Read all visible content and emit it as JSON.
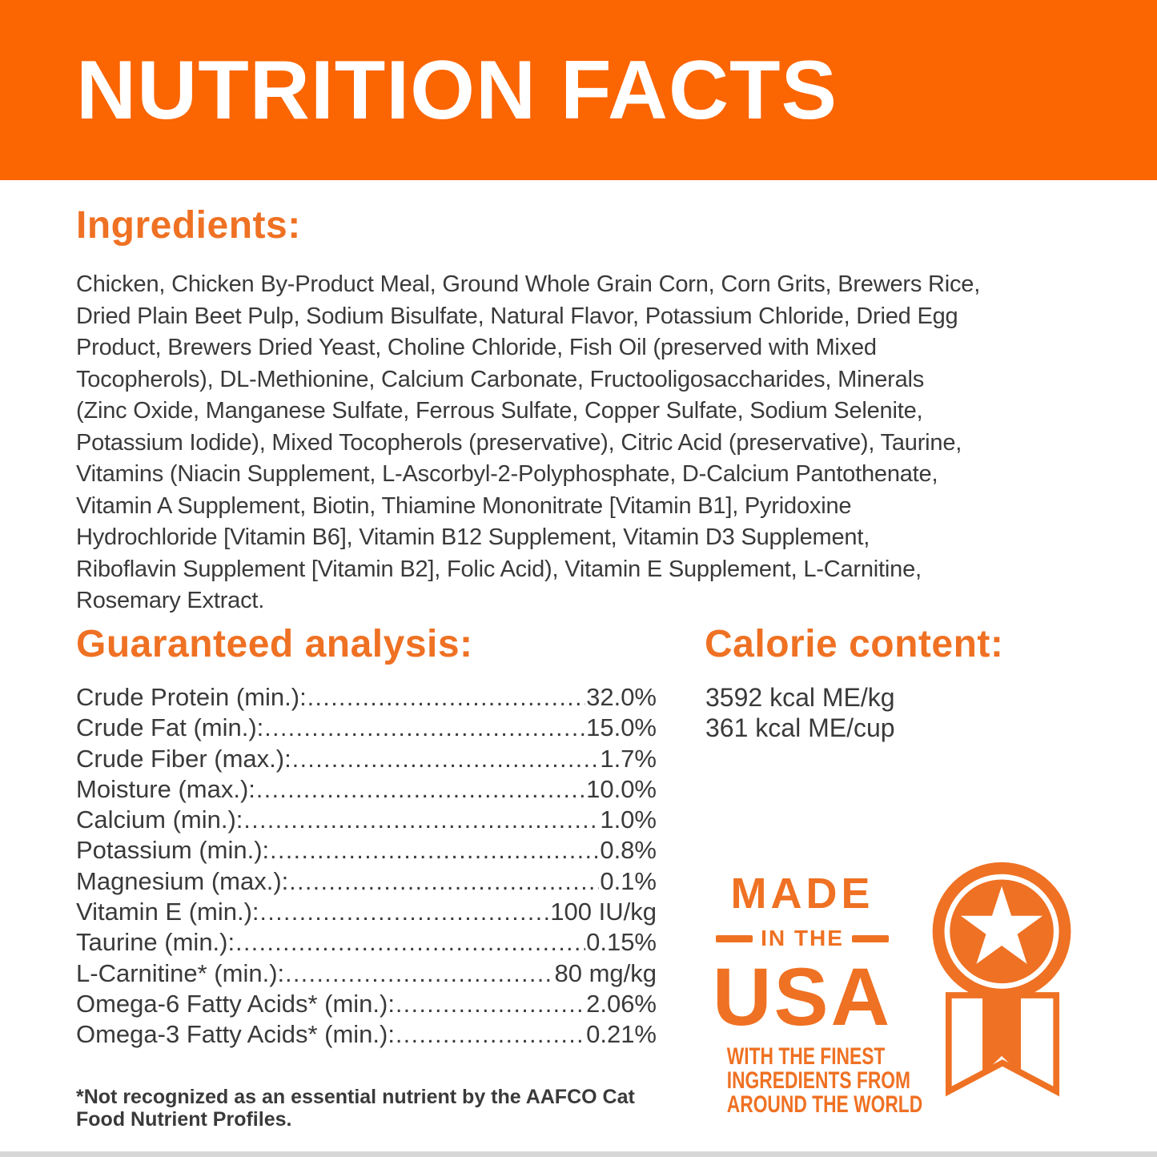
{
  "colors": {
    "banner_orange": "#FB6502",
    "accent_orange": "#EF7123",
    "body_text": "#3A3A3A",
    "bottom_strip": "#D8D8D8",
    "banner_text": "#FFFFFF"
  },
  "header": {
    "title": "NUTRITION FACTS"
  },
  "ingredients": {
    "heading": "Ingredients:",
    "lines": [
      "Chicken, Chicken By-Product Meal, Ground Whole Grain Corn, Corn Grits, Brewers Rice,",
      "Dried Plain Beet Pulp, Sodium Bisulfate, Natural Flavor, Potassium Chloride, Dried Egg",
      "Product, Brewers Dried Yeast, Choline Chloride, Fish Oil (preserved with Mixed",
      "Tocopherols), DL-Methionine, Calcium Carbonate, Fructooligosaccharides, Minerals",
      "(Zinc Oxide, Manganese Sulfate, Ferrous Sulfate, Copper Sulfate, Sodium Selenite,",
      "Potassium Iodide), Mixed Tocopherols (preservative), Citric Acid (preservative), Taurine,",
      "Vitamins (Niacin Supplement, L-Ascorbyl-2-Polyphosphate, D-Calcium Pantothenate,",
      "Vitamin A Supplement, Biotin, Thiamine Mononitrate [Vitamin B1], Pyridoxine",
      "Hydrochloride [Vitamin B6], Vitamin B12 Supplement, Vitamin D3 Supplement,",
      "Riboflavin Supplement [Vitamin B2], Folic Acid), Vitamin E Supplement, L-Carnitine,",
      "Rosemary Extract."
    ]
  },
  "guaranteed_analysis": {
    "heading": "Guaranteed analysis:",
    "rows": [
      {
        "label": "Crude Protein (min.):",
        "value": "32.0%"
      },
      {
        "label": "Crude Fat (min.):",
        "value": "15.0%"
      },
      {
        "label": "Crude Fiber (max.):",
        "value": "1.7%"
      },
      {
        "label": "Moisture (max.):",
        "value": "10.0%"
      },
      {
        "label": "Calcium (min.):",
        "value": "1.0%"
      },
      {
        "label": "Potassium (min.):",
        "value": "0.8%"
      },
      {
        "label": "Magnesium (max.):",
        "value": "0.1%"
      },
      {
        "label": "Vitamin E (min.):",
        "value": "100 IU/kg"
      },
      {
        "label": "Taurine (min.):",
        "value": "0.15%"
      },
      {
        "label": "L-Carnitine* (min.):",
        "value": "80 mg/kg"
      },
      {
        "label": "Omega-6 Fatty Acids* (min.):",
        "value": "2.06%"
      },
      {
        "label": "Omega-3 Fatty Acids* (min.):",
        "value": "0.21%"
      }
    ],
    "footnote": "*Not recognized as an essential nutrient by the AAFCO Cat Food Nutrient Profiles."
  },
  "calorie_content": {
    "heading": "Calorie content:",
    "lines": [
      "3592 kcal ME/kg",
      "361 kcal ME/cup"
    ]
  },
  "made_in_usa": {
    "line1": "MADE",
    "line2": "IN THE",
    "line3": "USA",
    "sub_lines": [
      "WITH THE FINEST",
      "INGREDIENTS FROM",
      "AROUND THE WORLD"
    ],
    "icon": "award-ribbon-star-icon"
  }
}
